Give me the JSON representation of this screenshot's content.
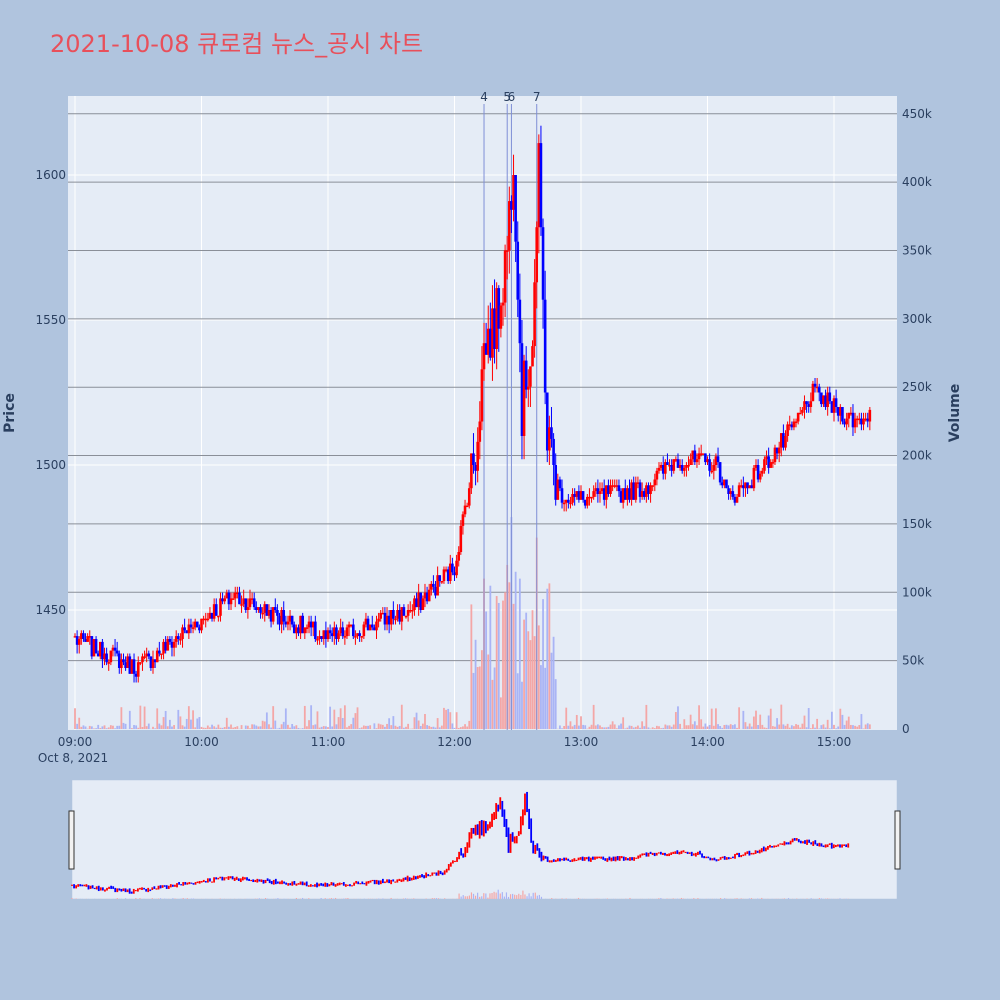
{
  "title": "2021-10-08 큐로컴 뉴스_공시 차트",
  "colors": {
    "up": "#ff0000",
    "down": "#0000ff",
    "up_volume": "#f4a6a6",
    "down_volume": "#a9b4f5"
  },
  "chart_data": {
    "type": "candlestick",
    "title": "2021-10-08 큐로컴 뉴스_공시 차트",
    "ylabel": "Price",
    "y2label": "Volume",
    "ylim": [
      1410,
      1628
    ],
    "y2lim": [
      0,
      460000
    ],
    "y_ticks": [
      1450,
      1500,
      1550,
      1600
    ],
    "y_tick_labels": [
      "1450",
      "1500",
      "1550",
      "1600"
    ],
    "y2_ticks": [
      0,
      50000,
      100000,
      150000,
      200000,
      250000,
      300000,
      350000,
      400000,
      450000
    ],
    "y2_tick_labels": [
      "0",
      "50k",
      "100k",
      "150k",
      "200k",
      "250k",
      "300k",
      "350k",
      "400k",
      "450k"
    ],
    "x_range": [
      "09:00",
      "15:30"
    ],
    "x_ticks": [
      "09:00",
      "10:00",
      "11:00",
      "12:00",
      "13:00",
      "14:00",
      "15:00"
    ],
    "x_sublabel": "Oct 8, 2021",
    "markers": [
      {
        "label": "4",
        "time": "12:14"
      },
      {
        "label": "5",
        "time": "12:25"
      },
      {
        "label": "6",
        "time": "12:27"
      },
      {
        "label": "7",
        "time": "12:39"
      }
    ],
    "key_points": [
      {
        "time": "09:00",
        "close": 1440
      },
      {
        "time": "09:30",
        "close": 1430
      },
      {
        "time": "10:15",
        "close": 1455
      },
      {
        "time": "11:00",
        "close": 1440
      },
      {
        "time": "11:40",
        "close": 1450
      },
      {
        "time": "12:00",
        "close": 1465
      },
      {
        "time": "12:10",
        "close": 1505
      },
      {
        "time": "12:14",
        "close": 1540
      },
      {
        "time": "12:20",
        "close": 1550
      },
      {
        "time": "12:25",
        "close": 1575
      },
      {
        "time": "12:28",
        "close": 1610
      },
      {
        "time": "12:32",
        "close": 1520
      },
      {
        "time": "12:37",
        "close": 1545
      },
      {
        "time": "12:40",
        "close": 1600
      },
      {
        "time": "12:44",
        "close": 1510
      },
      {
        "time": "12:50",
        "close": 1490
      },
      {
        "time": "13:00",
        "close": 1488
      },
      {
        "time": "13:30",
        "close": 1492
      },
      {
        "time": "13:45",
        "close": 1502
      },
      {
        "time": "14:05",
        "close": 1500
      },
      {
        "time": "14:10",
        "close": 1488
      },
      {
        "time": "14:25",
        "close": 1498
      },
      {
        "time": "14:40",
        "close": 1512
      },
      {
        "time": "14:50",
        "close": 1525
      },
      {
        "time": "15:00",
        "close": 1520
      },
      {
        "time": "15:10",
        "close": 1515
      },
      {
        "time": "15:18",
        "close": 1518
      }
    ]
  }
}
